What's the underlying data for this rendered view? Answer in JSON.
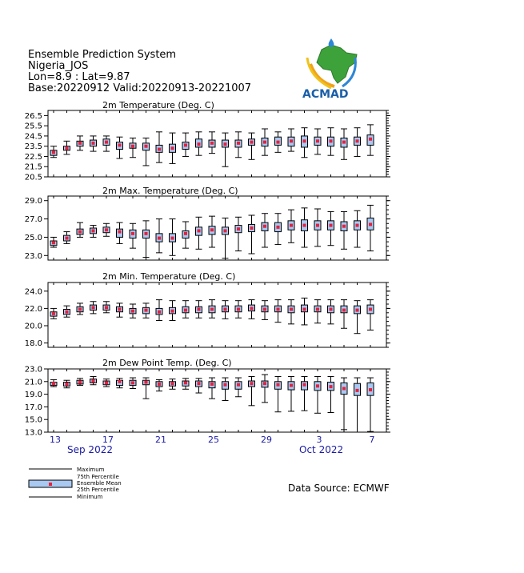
{
  "header": {
    "line1": "Ensemble Prediction System",
    "line2": "Nigeria_JOS",
    "line3": "Lon=8.9 : Lat=9.87",
    "line4": "Base:20220912 Valid:20220913-20221007"
  },
  "logo": {
    "text": "ACMAD",
    "icon": "africa-map-logo"
  },
  "source": "Data Source: ECMWF",
  "legend": {
    "maximum": "Maximum",
    "p75": "75th Percentile",
    "mean": "Ensemble Mean",
    "p25": "25th Percentile",
    "minimum": "Minimum"
  },
  "x_axis": {
    "day_labels": [
      "13",
      "17",
      "21",
      "25",
      "29",
      "3",
      "7"
    ],
    "months": [
      "Sep 2022",
      "Oct 2022"
    ]
  },
  "colors": {
    "box": "#a9c9f2",
    "mean": "#e8203a",
    "axis_label": "#1a1aa6",
    "logo": "#1b5fa8"
  },
  "chart_data": [
    {
      "type": "box",
      "title": "2m Temperature (Deg. C)",
      "ylim": [
        20.5,
        27.0
      ],
      "yticks": [
        "26.5",
        "25.5",
        "24.5",
        "23.5",
        "22.5",
        "21.5",
        "20.5"
      ],
      "dates": [
        "2022-09-13",
        "2022-09-14",
        "2022-09-15",
        "2022-09-16",
        "2022-09-17",
        "2022-09-18",
        "2022-09-19",
        "2022-09-20",
        "2022-09-21",
        "2022-09-22",
        "2022-09-23",
        "2022-09-24",
        "2022-09-25",
        "2022-09-26",
        "2022-09-27",
        "2022-09-28",
        "2022-09-29",
        "2022-09-30",
        "2022-10-01",
        "2022-10-02",
        "2022-10-03",
        "2022-10-04",
        "2022-10-05",
        "2022-10-06",
        "2022-10-07"
      ],
      "min": [
        22.4,
        22.7,
        23.1,
        23.0,
        23.0,
        22.3,
        22.4,
        21.6,
        21.9,
        21.8,
        22.5,
        22.6,
        22.8,
        21.5,
        22.4,
        22.2,
        22.6,
        22.9,
        23.0,
        22.4,
        22.7,
        22.6,
        22.2,
        22.5,
        22.6
      ],
      "p25": [
        22.6,
        23.1,
        23.5,
        23.5,
        23.6,
        23.2,
        23.3,
        23.1,
        22.9,
        22.9,
        23.2,
        23.4,
        23.4,
        23.4,
        23.4,
        23.6,
        23.5,
        23.6,
        23.5,
        23.4,
        23.6,
        23.5,
        23.4,
        23.6,
        23.6
      ],
      "mean": [
        22.9,
        23.3,
        23.8,
        23.8,
        23.9,
        23.6,
        23.5,
        23.5,
        23.2,
        23.3,
        23.6,
        23.7,
        23.8,
        23.7,
        23.8,
        23.9,
        23.9,
        23.9,
        24.0,
        24.0,
        24.0,
        24.0,
        23.9,
        24.0,
        24.2
      ],
      "p75": [
        23.1,
        23.5,
        24.0,
        24.1,
        24.2,
        23.9,
        23.8,
        23.8,
        23.6,
        23.7,
        23.9,
        24.2,
        24.1,
        24.1,
        24.1,
        24.2,
        24.3,
        24.4,
        24.4,
        24.5,
        24.4,
        24.4,
        24.3,
        24.4,
        24.6
      ],
      "max": [
        23.5,
        24.0,
        24.5,
        24.5,
        24.5,
        24.4,
        24.3,
        24.3,
        24.9,
        24.8,
        24.8,
        24.9,
        24.9,
        24.8,
        24.9,
        24.8,
        25.2,
        24.9,
        25.2,
        25.3,
        25.2,
        25.3,
        25.2,
        25.3,
        25.6
      ]
    },
    {
      "type": "box",
      "title": "2m Max. Temperature (Deg. C)",
      "ylim": [
        22.5,
        29.5
      ],
      "yticks": [
        "29.0",
        "27.0",
        "25.0",
        "23.0"
      ],
      "dates": [
        "2022-09-13",
        "2022-09-14",
        "2022-09-15",
        "2022-09-16",
        "2022-09-17",
        "2022-09-18",
        "2022-09-19",
        "2022-09-20",
        "2022-09-21",
        "2022-09-22",
        "2022-09-23",
        "2022-09-24",
        "2022-09-25",
        "2022-09-26",
        "2022-09-27",
        "2022-09-28",
        "2022-09-29",
        "2022-09-30",
        "2022-10-01",
        "2022-10-02",
        "2022-10-03",
        "2022-10-04",
        "2022-10-05",
        "2022-10-06",
        "2022-10-07"
      ],
      "min": [
        23.9,
        24.3,
        25.0,
        25.0,
        25.1,
        24.3,
        23.8,
        22.8,
        23.3,
        23.0,
        23.8,
        23.7,
        23.9,
        22.7,
        23.5,
        23.2,
        23.9,
        24.2,
        24.4,
        23.9,
        24.0,
        24.1,
        23.7,
        23.9,
        23.5
      ],
      "p25": [
        24.1,
        24.6,
        25.3,
        25.4,
        25.5,
        25.0,
        24.9,
        24.9,
        24.5,
        24.5,
        24.9,
        25.2,
        25.3,
        25.3,
        25.5,
        25.6,
        25.7,
        25.6,
        25.8,
        25.7,
        25.8,
        25.8,
        25.7,
        25.8,
        25.8
      ],
      "mean": [
        24.4,
        24.9,
        25.6,
        25.7,
        25.8,
        25.6,
        25.4,
        25.4,
        24.9,
        24.9,
        25.4,
        25.7,
        25.8,
        25.7,
        25.9,
        26.0,
        26.2,
        26.1,
        26.3,
        26.3,
        26.3,
        26.3,
        26.2,
        26.3,
        26.4
      ],
      "p75": [
        24.6,
        25.2,
        25.9,
        26.0,
        26.1,
        25.9,
        25.8,
        25.8,
        25.4,
        25.4,
        25.7,
        26.1,
        26.2,
        26.1,
        26.3,
        26.4,
        26.6,
        26.6,
        26.8,
        26.9,
        26.8,
        26.8,
        26.7,
        26.8,
        27.1
      ],
      "max": [
        25.0,
        25.6,
        26.6,
        26.3,
        26.5,
        26.6,
        26.5,
        26.8,
        27.0,
        27.0,
        26.7,
        27.2,
        27.3,
        27.1,
        27.2,
        27.4,
        27.6,
        27.6,
        28.0,
        28.2,
        28.1,
        27.8,
        27.8,
        27.9,
        28.5
      ]
    },
    {
      "type": "box",
      "title": "2m Min. Temperature (Deg. C)",
      "ylim": [
        17.5,
        25.0
      ],
      "yticks": [
        "24.0",
        "22.0",
        "20.0",
        "18.0"
      ],
      "dates": [
        "2022-09-13",
        "2022-09-14",
        "2022-09-15",
        "2022-09-16",
        "2022-09-17",
        "2022-09-18",
        "2022-09-19",
        "2022-09-20",
        "2022-09-21",
        "2022-09-22",
        "2022-09-23",
        "2022-09-24",
        "2022-09-25",
        "2022-09-26",
        "2022-09-27",
        "2022-09-28",
        "2022-09-29",
        "2022-09-30",
        "2022-10-01",
        "2022-10-02",
        "2022-10-03",
        "2022-10-04",
        "2022-10-05",
        "2022-10-06",
        "2022-10-07"
      ],
      "min": [
        20.8,
        21.0,
        21.3,
        21.4,
        21.5,
        21.0,
        20.9,
        20.9,
        20.6,
        20.6,
        20.9,
        20.9,
        20.9,
        20.8,
        20.9,
        20.8,
        20.7,
        20.4,
        20.2,
        20.1,
        20.3,
        20.2,
        19.7,
        19.1,
        19.5
      ],
      "p25": [
        21.1,
        21.3,
        21.6,
        21.8,
        21.8,
        21.6,
        21.4,
        21.4,
        21.3,
        21.4,
        21.5,
        21.5,
        21.5,
        21.6,
        21.6,
        21.7,
        21.6,
        21.6,
        21.5,
        21.6,
        21.6,
        21.5,
        21.5,
        21.4,
        21.4
      ],
      "mean": [
        21.4,
        21.6,
        21.9,
        22.1,
        22.1,
        21.9,
        21.7,
        21.8,
        21.6,
        21.7,
        21.8,
        21.9,
        21.9,
        21.9,
        21.9,
        22.0,
        21.9,
        21.9,
        21.9,
        21.9,
        21.9,
        21.9,
        21.8,
        21.8,
        21.9
      ],
      "p75": [
        21.6,
        21.9,
        22.2,
        22.4,
        22.4,
        22.2,
        22.0,
        22.1,
        22.0,
        22.1,
        22.2,
        22.2,
        22.3,
        22.3,
        22.3,
        22.4,
        22.3,
        22.3,
        22.3,
        22.4,
        22.3,
        22.3,
        22.3,
        22.3,
        22.4
      ],
      "max": [
        22.0,
        22.3,
        22.6,
        22.8,
        22.8,
        22.6,
        22.5,
        22.6,
        23.0,
        22.9,
        22.9,
        22.9,
        23.0,
        22.9,
        22.9,
        23.0,
        22.9,
        23.0,
        23.0,
        23.2,
        23.0,
        23.0,
        23.0,
        22.9,
        23.0
      ]
    },
    {
      "type": "box",
      "title": "2m Dew Point Temp. (Deg. C)",
      "ylim": [
        13.0,
        23.0
      ],
      "yticks": [
        "23.0",
        "21.0",
        "19.0",
        "17.0",
        "15.0",
        "13.0"
      ],
      "dates": [
        "2022-09-13",
        "2022-09-14",
        "2022-09-15",
        "2022-09-16",
        "2022-09-17",
        "2022-09-18",
        "2022-09-19",
        "2022-09-20",
        "2022-09-21",
        "2022-09-22",
        "2022-09-23",
        "2022-09-24",
        "2022-09-25",
        "2022-09-26",
        "2022-09-27",
        "2022-09-28",
        "2022-09-29",
        "2022-09-30",
        "2022-10-01",
        "2022-10-02",
        "2022-10-03",
        "2022-10-04",
        "2022-10-05",
        "2022-10-06",
        "2022-10-07"
      ],
      "min": [
        20.2,
        20.0,
        20.4,
        20.5,
        20.2,
        20.0,
        19.9,
        18.3,
        19.5,
        19.8,
        19.8,
        19.2,
        18.3,
        18.0,
        18.6,
        17.2,
        17.7,
        16.2,
        16.3,
        16.4,
        16.0,
        16.1,
        13.4,
        13.0,
        13.1
      ],
      "p25": [
        20.4,
        20.3,
        20.6,
        20.8,
        20.5,
        20.4,
        20.4,
        20.5,
        20.2,
        20.3,
        20.3,
        20.2,
        20.0,
        19.8,
        19.8,
        20.2,
        20.1,
        19.8,
        19.7,
        19.7,
        19.6,
        19.6,
        19.0,
        18.8,
        18.8
      ],
      "mean": [
        20.7,
        20.6,
        20.9,
        21.1,
        20.8,
        21.0,
        20.8,
        20.9,
        20.6,
        20.7,
        20.8,
        20.7,
        20.6,
        20.5,
        20.5,
        20.7,
        20.7,
        20.5,
        20.4,
        20.5,
        20.3,
        20.2,
        19.9,
        19.6,
        19.7
      ],
      "p75": [
        20.9,
        20.9,
        21.2,
        21.4,
        21.1,
        21.2,
        21.2,
        21.2,
        21.0,
        21.0,
        21.1,
        21.1,
        21.0,
        21.0,
        21.0,
        21.1,
        21.1,
        21.0,
        21.0,
        21.0,
        21.0,
        20.9,
        20.8,
        20.7,
        20.8
      ],
      "max": [
        21.3,
        21.2,
        21.5,
        21.8,
        21.4,
        21.5,
        21.6,
        21.6,
        21.3,
        21.4,
        21.5,
        21.5,
        21.6,
        21.6,
        21.6,
        21.8,
        22.1,
        21.8,
        21.8,
        21.8,
        21.8,
        21.8,
        21.6,
        21.6,
        21.6
      ]
    }
  ]
}
